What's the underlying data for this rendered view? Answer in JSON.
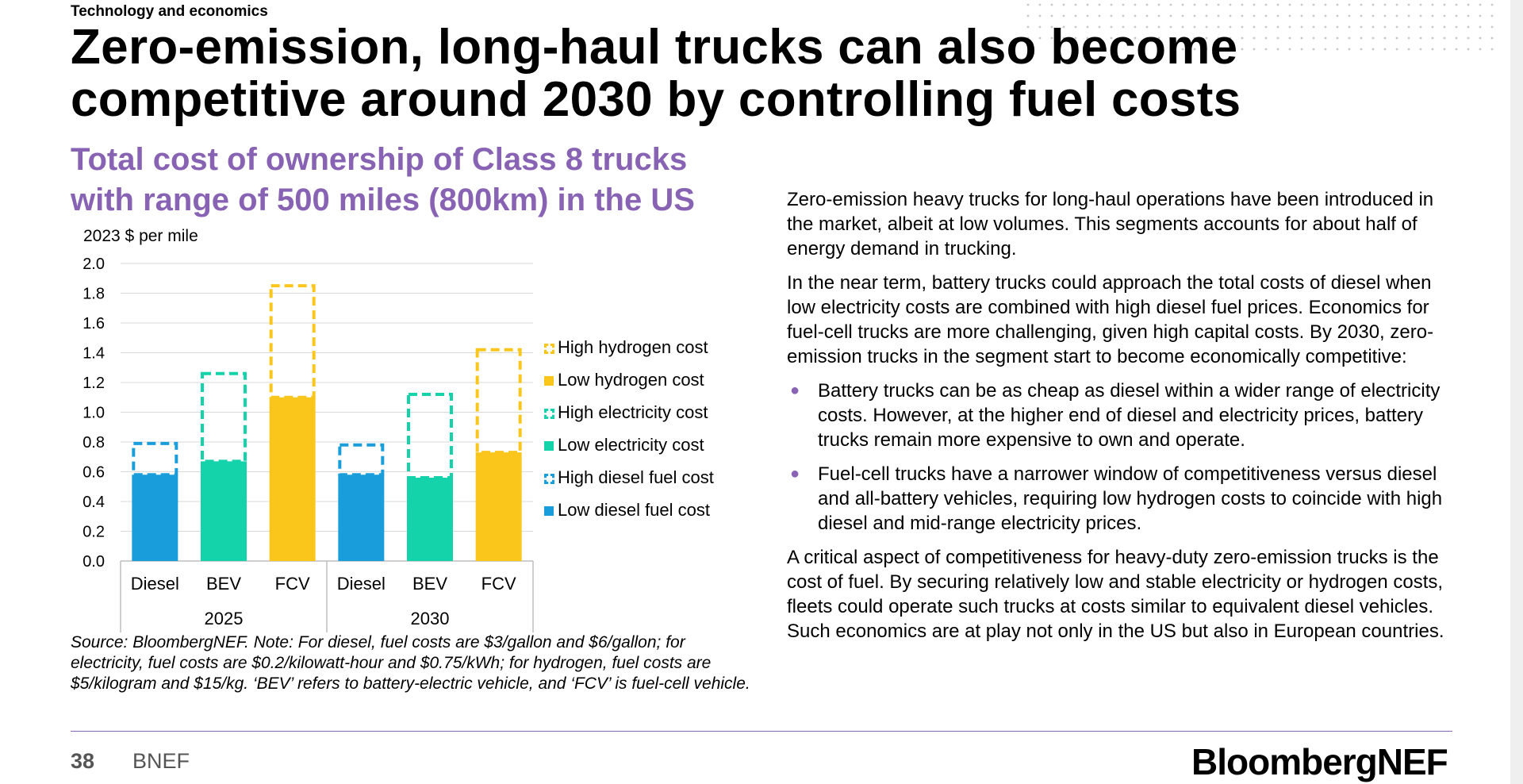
{
  "section_label": "Technology and economics",
  "title": "Zero-emission, long-haul trucks can also become competitive around 2030 by controlling fuel costs",
  "chart_heading": "Total cost of ownership of Class 8 trucks with range of 500 miles (800km) in the US",
  "colors": {
    "accent": "#8863b3",
    "diesel": "#1a9ddb",
    "electricity": "#14d3ab",
    "hydrogen": "#fbc61c"
  },
  "chart_data": {
    "type": "bar",
    "stacked": true,
    "ylabel": "2023 $ per mile",
    "ylim": [
      0,
      2.0
    ],
    "yticks": [
      "2.0",
      "1.8",
      "1.6",
      "1.4",
      "1.2",
      "1.0",
      "0.8",
      "0.6",
      "0.4",
      "0.2",
      "0.0"
    ],
    "grid": true,
    "legend_position": "right",
    "categories": [
      "Diesel",
      "BEV",
      "FCV",
      "Diesel",
      "BEV",
      "FCV"
    ],
    "groups": [
      {
        "label": "2025",
        "span": 3
      },
      {
        "label": "2030",
        "span": 3
      }
    ],
    "bars": [
      {
        "fuel": "diesel",
        "low": 0.58,
        "high": 0.79
      },
      {
        "fuel": "electricity",
        "low": 0.67,
        "high": 1.26
      },
      {
        "fuel": "hydrogen",
        "low": 1.1,
        "high": 1.85
      },
      {
        "fuel": "diesel",
        "low": 0.58,
        "high": 0.78
      },
      {
        "fuel": "electricity",
        "low": 0.56,
        "high": 1.12
      },
      {
        "fuel": "hydrogen",
        "low": 0.73,
        "high": 1.42
      }
    ],
    "legend": [
      {
        "label": "High hydrogen cost",
        "fuel": "hydrogen",
        "style": "dashed"
      },
      {
        "label": "Low hydrogen cost",
        "fuel": "hydrogen",
        "style": "solid"
      },
      {
        "label": "High electricity cost",
        "fuel": "electricity",
        "style": "dashed"
      },
      {
        "label": "Low electricity cost",
        "fuel": "electricity",
        "style": "solid"
      },
      {
        "label": "High diesel fuel cost",
        "fuel": "diesel",
        "style": "dashed"
      },
      {
        "label": "Low diesel fuel cost",
        "fuel": "diesel",
        "style": "solid"
      }
    ]
  },
  "source_note": "Source: BloombergNEF. Note: For diesel, fuel costs are $3/gallon and $6/gallon; for electricity, fuel costs are $0.2/kilowatt-hour and $0.75/kWh; for hydrogen, fuel costs are $5/kilogram and $15/kg. ‘BEV’ refers to battery-electric vehicle, and ‘FCV’ is fuel-cell vehicle.",
  "body": {
    "p1": "Zero-emission heavy trucks for long-haul operations have been introduced in the market, albeit at low volumes. This segments accounts for about half of energy demand in trucking.",
    "p2": "In the near term, battery trucks could approach the total costs of diesel when low electricity costs are combined with high diesel fuel prices. Economics for fuel-cell trucks are more challenging, given high capital costs. By 2030, zero-emission trucks in the segment start to become economically competitive:",
    "bullets": [
      "Battery trucks can be as cheap as diesel within a wider range of electricity costs. However, at the higher end of diesel and electricity prices, battery trucks remain more expensive to own and operate.",
      "Fuel-cell trucks have a narrower window of competitiveness versus diesel and all-battery vehicles, requiring low hydrogen costs to coincide with high diesel and mid-range electricity prices."
    ],
    "p3": "A critical aspect of competitiveness for heavy-duty zero-emission trucks is the cost of fuel. By securing relatively low and stable electricity or hydrogen costs, fleets could operate such trucks at costs similar to equivalent diesel vehicles. Such economics are at play not only in the US but also in European countries."
  },
  "footer": {
    "page_number": "38",
    "label": "BNEF",
    "logo": "BloombergNEF"
  }
}
